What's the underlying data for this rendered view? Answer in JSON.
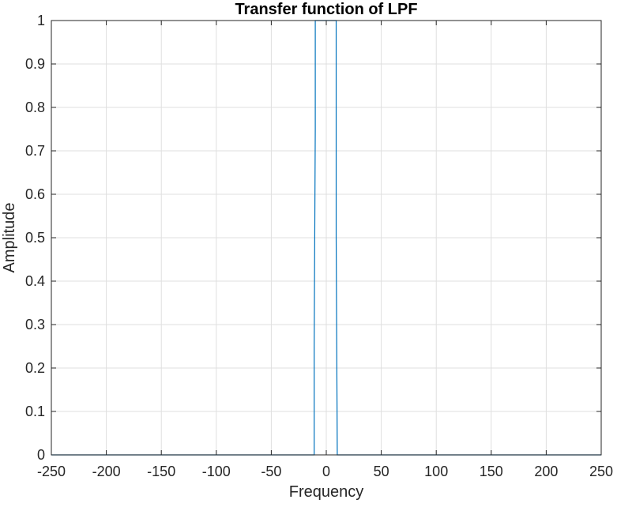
{
  "chart_data": {
    "type": "line",
    "title": "Transfer function of LPF",
    "xlabel": "Frequency",
    "ylabel": "Amplitude",
    "xlim": [
      -250,
      250
    ],
    "ylim": [
      0,
      1
    ],
    "xticks": [
      -250,
      -200,
      -150,
      -100,
      -50,
      0,
      50,
      100,
      150,
      200,
      250
    ],
    "yticks": [
      0,
      0.1,
      0.2,
      0.3,
      0.4,
      0.5,
      0.6,
      0.7,
      0.8,
      0.9,
      1
    ],
    "xtick_labels": [
      "-250",
      "-200",
      "-150",
      "-100",
      "-50",
      "0",
      "50",
      "100",
      "150",
      "200",
      "250"
    ],
    "ytick_labels": [
      "0",
      "0.1",
      "0.2",
      "0.3",
      "0.4",
      "0.5",
      "0.6",
      "0.7",
      "0.8",
      "0.9",
      "1"
    ],
    "grid": true,
    "box": true,
    "series": [
      {
        "color": "#0072bd",
        "x": [
          -250,
          -11,
          -11,
          -10,
          -10,
          9,
          9,
          10,
          10,
          250
        ],
        "y": [
          0,
          0,
          0.25,
          0.75,
          1,
          1,
          0.5,
          0,
          0,
          0
        ]
      }
    ]
  }
}
